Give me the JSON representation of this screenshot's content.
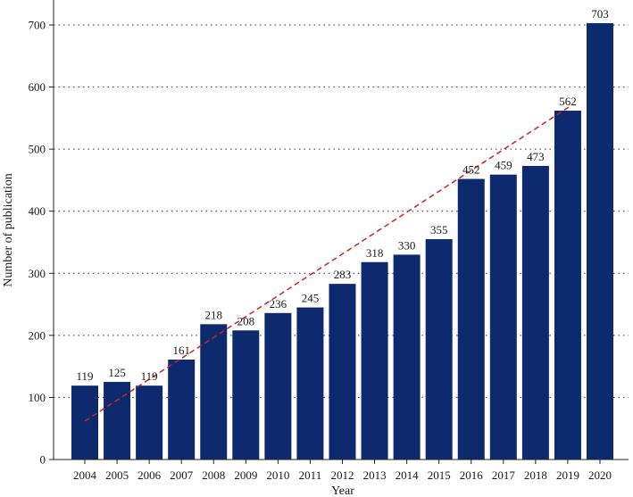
{
  "chart_data": {
    "type": "bar",
    "title": "",
    "xlabel": "Year",
    "ylabel": "Number of publication",
    "categories": [
      "2004",
      "2005",
      "2006",
      "2007",
      "2008",
      "2009",
      "2010",
      "2011",
      "2012",
      "2013",
      "2014",
      "2015",
      "2016",
      "2017",
      "2018",
      "2019",
      "2020"
    ],
    "values": [
      119,
      125,
      119,
      161,
      218,
      208,
      236,
      245,
      283,
      318,
      330,
      355,
      452,
      459,
      473,
      562,
      703
    ],
    "ylim": [
      0,
      740
    ],
    "yticks": [
      0,
      100,
      200,
      300,
      400,
      500,
      600,
      700
    ],
    "grid": true,
    "bar_color": "#0d2a6e",
    "trendline": {
      "style": "dashed",
      "color": "#cc2222",
      "start_value": 62,
      "end_value": 570
    }
  }
}
